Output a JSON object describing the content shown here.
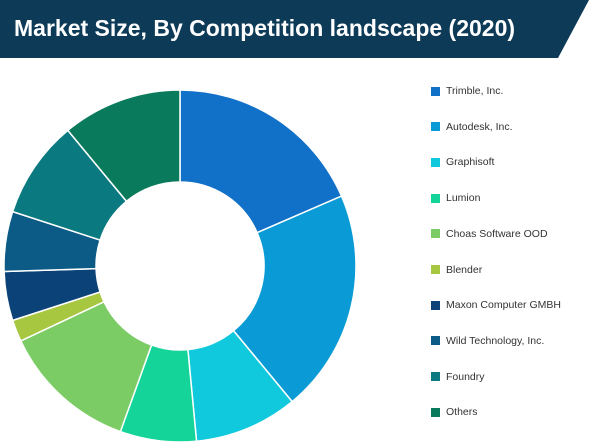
{
  "title": "Market Size, By Competition landscape (2020)",
  "colors": {
    "title_bg": "#0d3a57",
    "title_text": "#ffffff"
  },
  "chart_data": {
    "type": "pie",
    "donut": true,
    "title": "Market Size, By Competition landscape (2020)",
    "legend_position": "right",
    "categories": [
      "Trimble, Inc.",
      "Autodesk, Inc.",
      "Graphisoft",
      "Lumion",
      "Choas Software OOD",
      "Blender",
      "Maxon Computer GMBH",
      "Wild Technology, Inc.",
      "Foundry",
      "Others"
    ],
    "values": [
      18.5,
      20.5,
      9.5,
      7.0,
      12.5,
      2.0,
      4.5,
      5.5,
      9.0,
      11.0
    ],
    "colors": [
      "#1170c7",
      "#0a9bd6",
      "#11c9dc",
      "#15d49a",
      "#7ccc66",
      "#a7c741",
      "#0b4378",
      "#0b5b86",
      "#0a7a80",
      "#0a7a5c"
    ]
  }
}
